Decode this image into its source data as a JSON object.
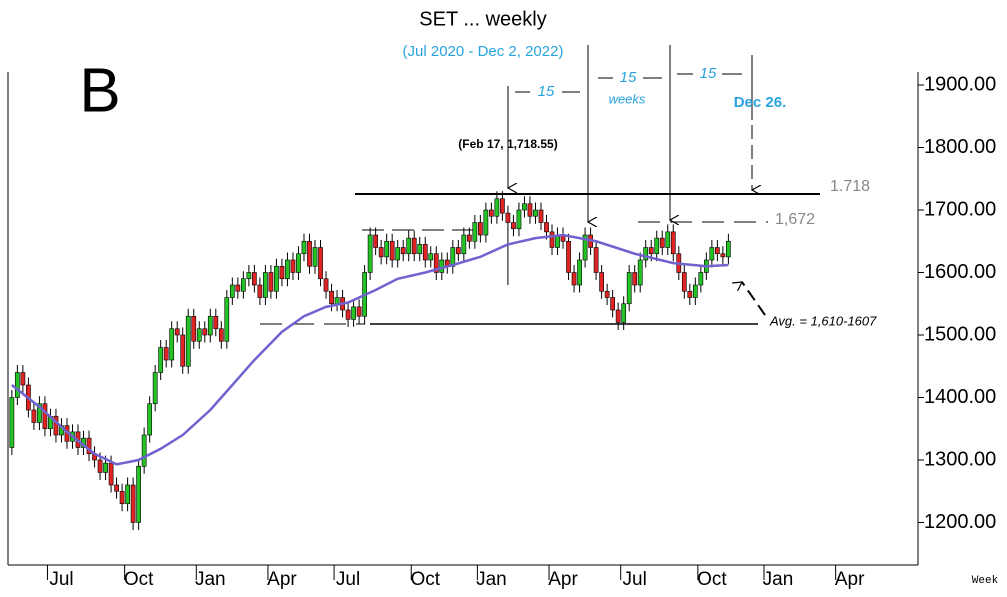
{
  "chart_data": {
    "type": "candlestick",
    "title": "SET ... weekly",
    "subtitle": "(Jul 2020 - Dec 2, 2022)",
    "x_label": "Week",
    "up_color": "#22c322",
    "down_color": "#e02424",
    "open": [
      1320,
      1400,
      1440,
      1420,
      1380,
      1360,
      1390,
      1350,
      1370,
      1340,
      1355,
      1330,
      1345,
      1320,
      1335,
      1310,
      1300,
      1280,
      1295,
      1260,
      1250,
      1230,
      1260,
      1200,
      1290,
      1340,
      1390,
      1440,
      1480,
      1460,
      1510,
      1500,
      1450,
      1530,
      1490,
      1510,
      1500,
      1530,
      1510,
      1490,
      1560,
      1580,
      1570,
      1590,
      1600,
      1580,
      1560,
      1600,
      1570,
      1610,
      1590,
      1620,
      1600,
      1630,
      1650,
      1610,
      1640,
      1590,
      1570,
      1550,
      1560,
      1540,
      1525,
      1545,
      1530,
      1600,
      1660,
      1640,
      1625,
      1650,
      1620,
      1640,
      1630,
      1655,
      1630,
      1645,
      1620,
      1630,
      1600,
      1620,
      1610,
      1640,
      1630,
      1660,
      1650,
      1680,
      1660,
      1700,
      1690,
      1718,
      1695,
      1680,
      1670,
      1700,
      1710,
      1690,
      1700,
      1680,
      1665,
      1640,
      1660,
      1650,
      1600,
      1580,
      1620,
      1660,
      1640,
      1600,
      1570,
      1560,
      1540,
      1520,
      1550,
      1600,
      1580,
      1620,
      1640,
      1630,
      1655,
      1640,
      1665,
      1630,
      1600,
      1570,
      1560,
      1580,
      1600,
      1620,
      1640,
      1630,
      1625
    ],
    "high": [
      1412,
      1452,
      1452,
      1432,
      1392,
      1402,
      1402,
      1382,
      1382,
      1367,
      1367,
      1357,
      1357,
      1347,
      1347,
      1322,
      1312,
      1307,
      1307,
      1272,
      1262,
      1272,
      1272,
      1302,
      1352,
      1402,
      1452,
      1492,
      1492,
      1522,
      1522,
      1512,
      1542,
      1542,
      1522,
      1522,
      1542,
      1542,
      1522,
      1572,
      1592,
      1592,
      1602,
      1612,
      1612,
      1592,
      1612,
      1612,
      1622,
      1622,
      1632,
      1632,
      1642,
      1662,
      1662,
      1652,
      1652,
      1602,
      1582,
      1572,
      1572,
      1552,
      1557,
      1557,
      1612,
      1672,
      1672,
      1652,
      1662,
      1662,
      1652,
      1652,
      1667,
      1667,
      1657,
      1657,
      1642,
      1642,
      1632,
      1632,
      1652,
      1652,
      1672,
      1672,
      1692,
      1692,
      1712,
      1712,
      1730,
      1730,
      1707,
      1692,
      1712,
      1722,
      1722,
      1712,
      1712,
      1692,
      1677,
      1672,
      1672,
      1662,
      1612,
      1632,
      1672,
      1672,
      1652,
      1612,
      1582,
      1572,
      1552,
      1562,
      1612,
      1612,
      1632,
      1652,
      1652,
      1667,
      1667,
      1677,
      1677,
      1642,
      1612,
      1582,
      1592,
      1612,
      1632,
      1652,
      1652,
      1642,
      1662
    ],
    "low": [
      1308,
      1388,
      1408,
      1368,
      1348,
      1348,
      1338,
      1338,
      1328,
      1328,
      1318,
      1318,
      1308,
      1308,
      1298,
      1288,
      1268,
      1268,
      1248,
      1238,
      1218,
      1218,
      1188,
      1188,
      1278,
      1328,
      1378,
      1428,
      1448,
      1448,
      1488,
      1438,
      1438,
      1478,
      1478,
      1488,
      1488,
      1498,
      1478,
      1478,
      1548,
      1558,
      1558,
      1578,
      1568,
      1548,
      1548,
      1558,
      1558,
      1578,
      1578,
      1588,
      1588,
      1618,
      1598,
      1598,
      1578,
      1558,
      1538,
      1538,
      1528,
      1513,
      1513,
      1518,
      1518,
      1588,
      1628,
      1613,
      1613,
      1608,
      1608,
      1618,
      1618,
      1618,
      1618,
      1608,
      1608,
      1588,
      1588,
      1598,
      1598,
      1618,
      1618,
      1638,
      1638,
      1648,
      1648,
      1678,
      1678,
      1683,
      1580,
      1658,
      1658,
      1688,
      1678,
      1678,
      1668,
      1653,
      1628,
      1628,
      1638,
      1588,
      1568,
      1568,
      1608,
      1628,
      1588,
      1558,
      1548,
      1528,
      1508,
      1508,
      1538,
      1568,
      1568,
      1608,
      1618,
      1618,
      1628,
      1628,
      1618,
      1588,
      1558,
      1548,
      1548,
      1568,
      1588,
      1608,
      1618,
      1613,
      1613
    ],
    "close": [
      1400,
      1440,
      1420,
      1380,
      1360,
      1390,
      1350,
      1370,
      1340,
      1355,
      1330,
      1345,
      1320,
      1335,
      1310,
      1300,
      1280,
      1295,
      1260,
      1250,
      1230,
      1260,
      1200,
      1290,
      1340,
      1390,
      1440,
      1480,
      1460,
      1510,
      1500,
      1450,
      1530,
      1490,
      1510,
      1500,
      1530,
      1510,
      1490,
      1560,
      1580,
      1570,
      1590,
      1600,
      1580,
      1560,
      1600,
      1570,
      1610,
      1590,
      1620,
      1600,
      1630,
      1650,
      1610,
      1640,
      1590,
      1570,
      1550,
      1560,
      1540,
      1525,
      1545,
      1530,
      1600,
      1660,
      1640,
      1625,
      1650,
      1620,
      1640,
      1630,
      1655,
      1630,
      1645,
      1620,
      1630,
      1600,
      1620,
      1610,
      1640,
      1630,
      1660,
      1650,
      1680,
      1660,
      1700,
      1690,
      1718,
      1695,
      1680,
      1670,
      1700,
      1710,
      1690,
      1700,
      1680,
      1665,
      1640,
      1660,
      1650,
      1600,
      1580,
      1620,
      1660,
      1640,
      1600,
      1570,
      1560,
      1540,
      1520,
      1550,
      1600,
      1580,
      1620,
      1640,
      1630,
      1655,
      1640,
      1665,
      1630,
      1600,
      1570,
      1560,
      1580,
      1600,
      1620,
      1640,
      1630,
      1625,
      1650
    ],
    "average": {
      "color": "#6f63d0",
      "x": [
        0,
        5,
        10,
        15,
        19,
        23,
        27,
        31,
        36,
        40,
        44,
        49,
        53,
        57,
        61,
        66,
        70,
        75,
        80,
        85,
        90,
        95,
        100,
        106,
        113,
        120,
        126,
        130
      ],
      "values": [
        1420,
        1385,
        1345,
        1310,
        1293,
        1300,
        1318,
        1340,
        1380,
        1420,
        1460,
        1505,
        1530,
        1545,
        1552,
        1572,
        1590,
        1600,
        1612,
        1625,
        1645,
        1655,
        1660,
        1650,
        1630,
        1615,
        1610,
        1612
      ]
    },
    "xlim": [
      -0.7,
      164.4
    ],
    "xticks": [
      {
        "value": 9,
        "label": "Jul"
      },
      {
        "value": 23,
        "label": "Oct"
      },
      {
        "value": 36,
        "label": "Jan"
      },
      {
        "value": 49,
        "label": "Apr"
      },
      {
        "value": 61,
        "label": "Jul"
      },
      {
        "value": 75,
        "label": "Oct"
      },
      {
        "value": 87,
        "label": "Jan"
      },
      {
        "value": 100,
        "label": "Apr"
      },
      {
        "value": 113,
        "label": "Jul"
      },
      {
        "value": 127,
        "label": "Oct"
      },
      {
        "value": 139,
        "label": "Jan"
      },
      {
        "value": 152,
        "label": "Apr"
      }
    ],
    "ylim": [
      1140,
      1924
    ],
    "yticks": [
      {
        "value": 1200,
        "label": "1200.00"
      },
      {
        "value": 1300,
        "label": "1300.00"
      },
      {
        "value": 1400,
        "label": "1400.00"
      },
      {
        "value": 1500,
        "label": "1500.00"
      },
      {
        "value": 1600,
        "label": "1600.00"
      },
      {
        "value": 1700,
        "label": "1700.00"
      },
      {
        "value": 1800,
        "label": "1800.00"
      },
      {
        "value": 1900,
        "label": "1900.00"
      }
    ],
    "annotations": {
      "letter": "B",
      "peak": "(Feb 17, 1,718.55)",
      "count_1": "15",
      "count_2": "15",
      "weeks": "weeks",
      "count_3": "15",
      "target": "Dec 26.",
      "resistance": "1.718",
      "level": "1,672",
      "average": "Avg. = 1,610-1607"
    }
  }
}
